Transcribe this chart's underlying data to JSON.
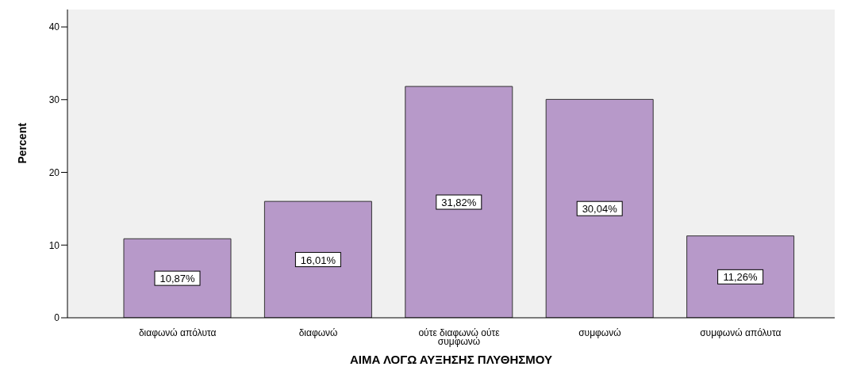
{
  "chart_data": {
    "type": "bar",
    "xlabel": "ΑΙΜΑ ΛΟΓΩ ΑΥΞΗΣΗΣ ΠΛΥΘΗΣΜΟΥ",
    "ylabel": "Percent",
    "categories": [
      "διαφωνώ απόλυτα",
      "διαφωνώ",
      "ούτε διαφωνώ ούτε συμφωνώ",
      "συμφωνώ",
      "συμφωνώ απόλυτα"
    ],
    "values": [
      10.87,
      16.01,
      31.82,
      30.04,
      11.26
    ],
    "value_labels": [
      "10,87%",
      "16,01%",
      "31,82%",
      "30,04%",
      "11,26%"
    ],
    "color": "#b799c9",
    "ylim": [
      0,
      42.4
    ],
    "yticks": [
      0,
      10,
      20,
      30,
      40
    ],
    "grid": false,
    "legend": false
  }
}
